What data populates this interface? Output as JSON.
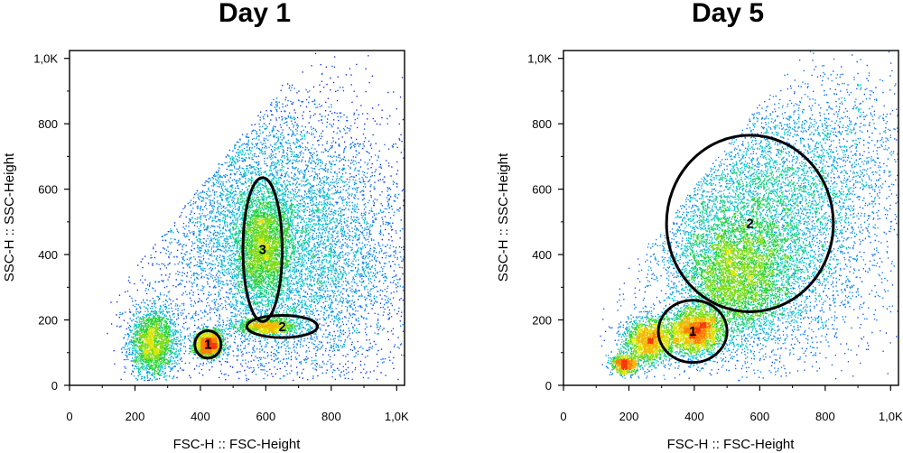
{
  "chart_data": [
    {
      "type": "scatter",
      "title": "Day 1",
      "xlabel": "FSC-H :: FSC-Height",
      "ylabel": "SSC-H :: SSC-Height",
      "xlim": [
        0,
        1024
      ],
      "ylim": [
        0,
        1024
      ],
      "xticks": [
        0,
        200,
        400,
        600,
        800,
        1000
      ],
      "xtick_labels": [
        "0",
        "200",
        "400",
        "600",
        "800",
        "1,0K"
      ],
      "yticks": [
        0,
        200,
        400,
        600,
        800,
        1000
      ],
      "ytick_labels": [
        "0",
        "200",
        "400",
        "600",
        "800",
        "1,0K"
      ],
      "density_clusters": [
        {
          "cx": 255,
          "cy": 130,
          "sx": 38,
          "sy": 55,
          "n": 2200
        },
        {
          "cx": 425,
          "cy": 125,
          "sx": 22,
          "sy": 20,
          "n": 1800
        },
        {
          "cx": 600,
          "cy": 180,
          "sx": 45,
          "sy": 12,
          "n": 1000
        },
        {
          "cx": 590,
          "cy": 420,
          "sx": 42,
          "sy": 85,
          "n": 2600
        },
        {
          "cx": 680,
          "cy": 400,
          "sx": 180,
          "sy": 200,
          "n": 7000
        },
        {
          "cx": 440,
          "cy": 650,
          "sx": 220,
          "sy": 190,
          "n": 3000
        }
      ],
      "gates": [
        {
          "label": "1",
          "cx": 423,
          "cy": 125,
          "rx": 40,
          "ry": 42
        },
        {
          "label": "2",
          "cx": 650,
          "cy": 180,
          "rx": 108,
          "ry": 34
        },
        {
          "label": "3",
          "cx": 590,
          "cy": 415,
          "rx": 60,
          "ry": 220
        }
      ]
    },
    {
      "type": "scatter",
      "title": "Day 5",
      "xlabel": "FSC-H :: FSC-Height",
      "ylabel": "SSC-H :: SSC-Height",
      "xlim": [
        0,
        1024
      ],
      "ylim": [
        0,
        1024
      ],
      "xticks": [
        0,
        200,
        400,
        600,
        800,
        1000
      ],
      "xtick_labels": [
        "0",
        "200",
        "400",
        "600",
        "800",
        "1,0K"
      ],
      "yticks": [
        0,
        200,
        400,
        600,
        800,
        1000
      ],
      "ytick_labels": [
        "0",
        "200",
        "400",
        "600",
        "800",
        "1,0K"
      ],
      "density_clusters": [
        {
          "cx": 185,
          "cy": 65,
          "sx": 20,
          "sy": 15,
          "n": 700
        },
        {
          "cx": 260,
          "cy": 135,
          "sx": 40,
          "sy": 35,
          "n": 1800
        },
        {
          "cx": 400,
          "cy": 165,
          "sx": 40,
          "sy": 35,
          "n": 2200
        },
        {
          "cx": 520,
          "cy": 320,
          "sx": 80,
          "sy": 100,
          "n": 3200
        },
        {
          "cx": 580,
          "cy": 450,
          "sx": 170,
          "sy": 190,
          "n": 6500
        },
        {
          "cx": 780,
          "cy": 680,
          "sx": 170,
          "sy": 160,
          "n": 1800
        }
      ],
      "gates": [
        {
          "label": "1",
          "cx": 395,
          "cy": 165,
          "rx": 105,
          "ry": 95
        },
        {
          "label": "2",
          "cx": 570,
          "cy": 495,
          "rx": 255,
          "ry": 270
        }
      ]
    }
  ]
}
